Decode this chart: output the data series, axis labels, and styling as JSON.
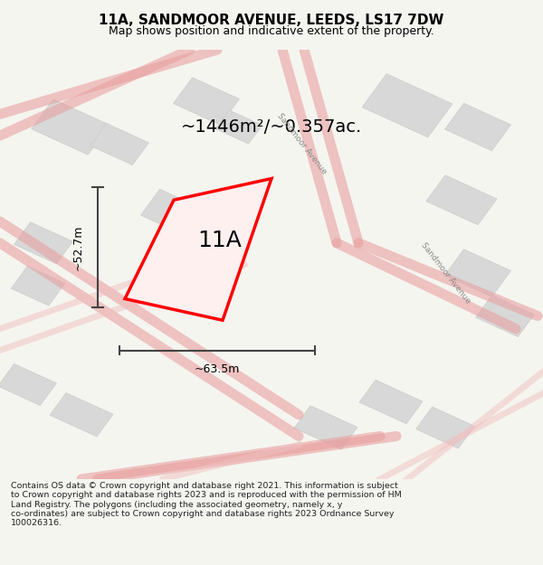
{
  "title_line1": "11A, SANDMOOR AVENUE, LEEDS, LS17 7DW",
  "title_line2": "Map shows position and indicative extent of the property.",
  "area_text": "~1446m²/~0.357ac.",
  "label_11A": "11A",
  "dim_width": "~63.5m",
  "dim_height": "~52.7m",
  "street_name_top": "Sandmoor Avenue",
  "street_name_right": "Sandmoor Avenue",
  "footer_text": "Contains OS data © Crown copyright and database right 2021. This information is subject to Crown copyright and database rights 2023 and is reproduced with the permission of HM Land Registry. The polygons (including the associated geometry, namely x, y co-ordinates) are subject to Crown copyright and database rights 2023 Ordnance Survey 100026316.",
  "bg_color": "#f5f5f0",
  "map_bg": "#f9f9f6",
  "building_color": "#d8d8d8",
  "road_line_color": "#f0c0c0",
  "road_line_color2": "#e8a0a0",
  "plot_color": "#ff0000",
  "dim_line_color": "#444444",
  "title_bg": "#ffffff",
  "footer_bg": "#ffffff"
}
